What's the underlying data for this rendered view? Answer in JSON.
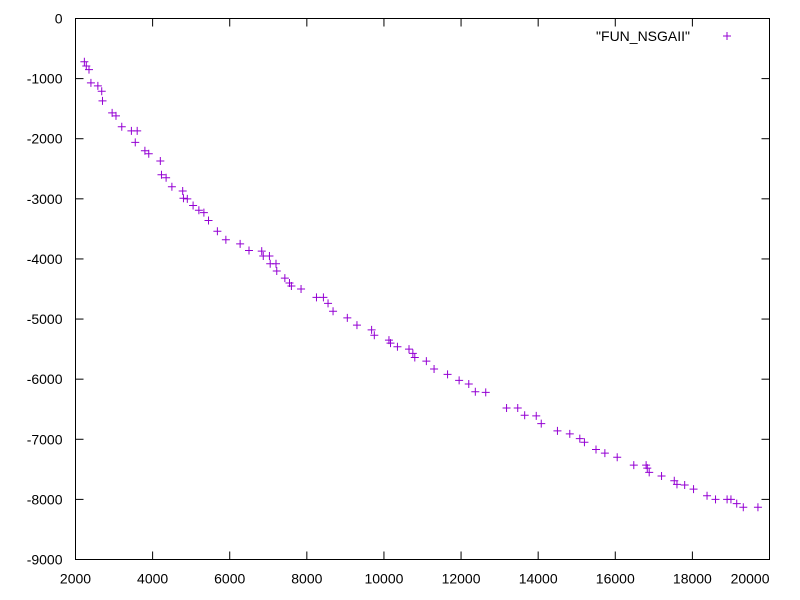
{
  "chart_data": {
    "type": "scatter",
    "title": "",
    "xlabel": "",
    "ylabel": "",
    "xlim": [
      2000,
      20000
    ],
    "ylim": [
      -9000,
      0
    ],
    "xticks": [
      2000,
      4000,
      6000,
      8000,
      10000,
      12000,
      14000,
      16000,
      18000,
      20000
    ],
    "yticks": [
      0,
      -1000,
      -2000,
      -3000,
      -4000,
      -5000,
      -6000,
      -7000,
      -8000,
      -9000
    ],
    "grid": false,
    "legend_position": "top-right",
    "marker": "+",
    "series": [
      {
        "name": "\"FUN_NSGAII\"",
        "color": "#9400d3",
        "points": [
          [
            2230,
            -720
          ],
          [
            2280,
            -790
          ],
          [
            2350,
            -850
          ],
          [
            2400,
            -1070
          ],
          [
            2580,
            -1120
          ],
          [
            2680,
            -1210
          ],
          [
            2700,
            -1370
          ],
          [
            2950,
            -1570
          ],
          [
            3050,
            -1620
          ],
          [
            3200,
            -1800
          ],
          [
            3450,
            -1870
          ],
          [
            3600,
            -1870
          ],
          [
            3550,
            -2060
          ],
          [
            3800,
            -2200
          ],
          [
            3900,
            -2250
          ],
          [
            4200,
            -2370
          ],
          [
            4230,
            -2600
          ],
          [
            4350,
            -2650
          ],
          [
            4500,
            -2800
          ],
          [
            4780,
            -2870
          ],
          [
            4800,
            -2990
          ],
          [
            4900,
            -3000
          ],
          [
            5050,
            -3110
          ],
          [
            5200,
            -3190
          ],
          [
            5330,
            -3230
          ],
          [
            5450,
            -3360
          ],
          [
            5680,
            -3540
          ],
          [
            5900,
            -3680
          ],
          [
            6270,
            -3750
          ],
          [
            6500,
            -3860
          ],
          [
            6830,
            -3870
          ],
          [
            6870,
            -3950
          ],
          [
            7030,
            -3950
          ],
          [
            7050,
            -4080
          ],
          [
            7200,
            -4080
          ],
          [
            7220,
            -4200
          ],
          [
            7430,
            -4320
          ],
          [
            7550,
            -4400
          ],
          [
            7600,
            -4450
          ],
          [
            7850,
            -4500
          ],
          [
            8250,
            -4640
          ],
          [
            8430,
            -4640
          ],
          [
            8550,
            -4740
          ],
          [
            8680,
            -4870
          ],
          [
            9050,
            -4980
          ],
          [
            9300,
            -5100
          ],
          [
            9680,
            -5180
          ],
          [
            9750,
            -5270
          ],
          [
            10130,
            -5350
          ],
          [
            10170,
            -5400
          ],
          [
            10350,
            -5460
          ],
          [
            10650,
            -5500
          ],
          [
            10750,
            -5570
          ],
          [
            10800,
            -5640
          ],
          [
            11100,
            -5700
          ],
          [
            11300,
            -5830
          ],
          [
            11650,
            -5920
          ],
          [
            11950,
            -6020
          ],
          [
            12200,
            -6080
          ],
          [
            12370,
            -6210
          ],
          [
            12640,
            -6220
          ],
          [
            13180,
            -6480
          ],
          [
            13470,
            -6480
          ],
          [
            13650,
            -6600
          ],
          [
            13950,
            -6610
          ],
          [
            14080,
            -6740
          ],
          [
            14500,
            -6860
          ],
          [
            14820,
            -6910
          ],
          [
            15080,
            -6990
          ],
          [
            15200,
            -7050
          ],
          [
            15500,
            -7170
          ],
          [
            15730,
            -7230
          ],
          [
            16050,
            -7300
          ],
          [
            16480,
            -7430
          ],
          [
            16800,
            -7430
          ],
          [
            16830,
            -7480
          ],
          [
            16880,
            -7550
          ],
          [
            17200,
            -7610
          ],
          [
            17530,
            -7690
          ],
          [
            17600,
            -7750
          ],
          [
            17800,
            -7760
          ],
          [
            18030,
            -7830
          ],
          [
            18380,
            -7940
          ],
          [
            18600,
            -8000
          ],
          [
            18900,
            -8000
          ],
          [
            19000,
            -8000
          ],
          [
            19150,
            -8070
          ],
          [
            19320,
            -8130
          ],
          [
            19700,
            -8130
          ]
        ]
      }
    ]
  }
}
